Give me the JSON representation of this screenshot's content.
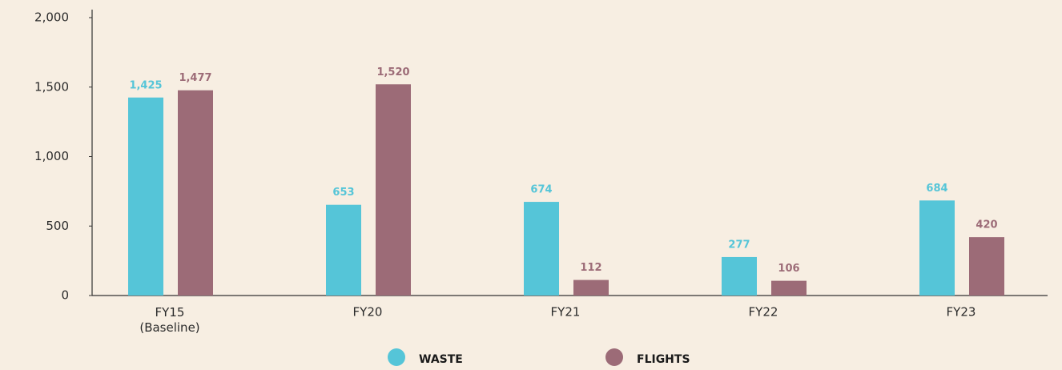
{
  "chart_data": {
    "type": "bar",
    "categories": [
      "FY15\n(Baseline)",
      "FY20",
      "FY21",
      "FY22",
      "FY23"
    ],
    "series": [
      {
        "name": "WASTE",
        "color": "#55c5d8",
        "values": [
          1425,
          653,
          674,
          277,
          684
        ],
        "value_labels": [
          "1,425",
          "653",
          "674",
          "277",
          "684"
        ]
      },
      {
        "name": "FLIGHTS",
        "color": "#9c6b77",
        "values": [
          1477,
          1520,
          112,
          106,
          420
        ],
        "value_labels": [
          "1,477",
          "1,520",
          "112",
          "106",
          "420"
        ]
      }
    ],
    "ylim": [
      0,
      2000
    ],
    "yticks": [
      0,
      500,
      {
        "value": 1000,
        "label": "1,000"
      },
      {
        "value": 1500,
        "label": "1,500"
      },
      {
        "value": 2000,
        "label": "2,000"
      }
    ],
    "grid": false,
    "legend": "bottom"
  }
}
